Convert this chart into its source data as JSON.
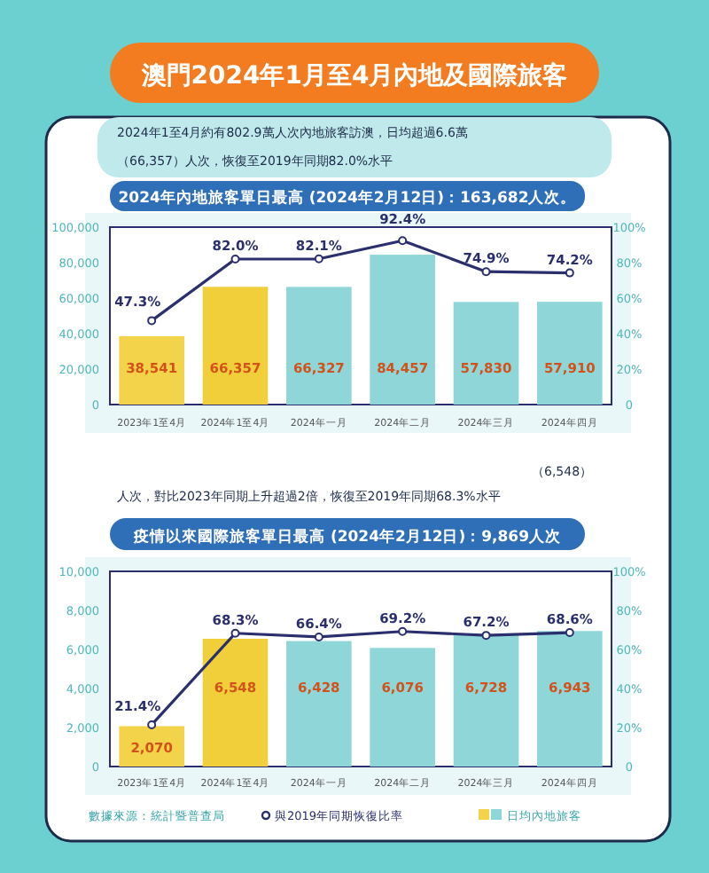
{
  "chart_data": [
    {
      "type": "bar",
      "title": "澳門2024年1月至4月內地及國際旅客",
      "subtitle": "2024年內地旅客單日最高 (2024年2月12日)：163,682人次。",
      "annotations": [
        "2024年1至4月約有802.9萬人次內地旅客訪澳，日均超過6.6萬",
        "（66,357）人次，恢復至2019年同期82.0%水平"
      ],
      "categories": [
        "2023年1至4月",
        "2024年1至4月",
        "2024年一月",
        "2024年二月",
        "2024年三月",
        "2024年四月"
      ],
      "series": [
        {
          "axis": "y",
          "colors": [
            "#f3d34a",
            "#f0cf3a",
            "#8fd6d8",
            "#8fd6d8",
            "#8fd6d8",
            "#8fd6d8"
          ],
          "values": [
            38541,
            66357,
            66327,
            84457,
            57830,
            57910
          ],
          "value_labels": [
            "38,541",
            "66,357",
            "66,327",
            "84,457",
            "57,830",
            "57,910"
          ]
        },
        {
          "type": "line",
          "axis": "y2",
          "color": "#2b2f6e",
          "values": [
            47.3,
            82.0,
            82.1,
            92.4,
            74.9,
            74.2
          ],
          "value_labels": [
            "47.3%",
            "82.0%",
            "82.1%",
            "92.4%",
            "74.9%",
            "74.2%"
          ]
        }
      ],
      "ylim": [
        0,
        100000
      ],
      "yticks": [
        {
          "value": 0,
          "label": "0"
        },
        {
          "value": 20000,
          "label": "20,000"
        },
        {
          "value": 40000,
          "label": "40,000"
        },
        {
          "value": 60000,
          "label": "60,000"
        },
        {
          "value": 80000,
          "label": "80,000"
        },
        {
          "value": 100000,
          "label": "100,000"
        }
      ],
      "y2lim": [
        0,
        100
      ],
      "y2ticks": [
        0,
        {
          "value": 20,
          "label": "20%"
        },
        {
          "value": 40,
          "label": "40%"
        },
        {
          "value": 60,
          "label": "60%"
        },
        {
          "value": 80,
          "label": "80%"
        },
        {
          "value": 100,
          "label": "100%"
        }
      ],
      "marker": "circle",
      "legend": false
    },
    {
      "type": "bar",
      "title": "疫情以來國際旅客單日最高 (2024年2月12日)：9,869人次",
      "annotations": [
        "（6,548）",
        "人次，對比2023年同期上升超過2倍，恢復至2019年同期68.3%水平",
        "數據來源：統計暨普查局"
      ],
      "categories": [
        "2023年1至4月",
        "2024年1至4月",
        "2024年一月",
        "2024年二月",
        "2024年三月",
        "2024年四月"
      ],
      "series": [
        {
          "axis": "y",
          "name": "日均內地旅客",
          "color": "#8fd6d8",
          "colors": [
            "#f3d34a",
            "#f0cf3a",
            "#8fd6d8",
            "#8fd6d8",
            "#8fd6d8",
            "#8fd6d8"
          ],
          "values": [
            2070,
            6548,
            6428,
            6076,
            6728,
            6943
          ],
          "value_labels": [
            "2,070",
            "6,548",
            "6,428",
            "6,076",
            "6,728",
            "6,943"
          ]
        },
        {
          "type": "line",
          "axis": "y2",
          "name": "與2019年同期恢復比率",
          "color": "#2b2f6e",
          "values": [
            21.4,
            68.3,
            66.4,
            69.2,
            67.2,
            68.6
          ],
          "value_labels": [
            "21.4%",
            "68.3%",
            "66.4%",
            "69.2%",
            "67.2%",
            "68.6%"
          ]
        }
      ],
      "ylim": [
        0,
        10000
      ],
      "yticks": [
        {
          "value": 0,
          "label": "0"
        },
        {
          "value": 2000,
          "label": "2,000"
        },
        {
          "value": 4000,
          "label": "4,000"
        },
        {
          "value": 6000,
          "label": "6,000"
        },
        {
          "value": 8000,
          "label": "8,000"
        },
        {
          "value": 10000,
          "label": "10,000"
        }
      ],
      "y2lim": [
        0,
        100
      ],
      "y2ticks": [
        0,
        {
          "value": 20,
          "label": "20%"
        },
        {
          "value": 40,
          "label": "40%"
        },
        {
          "value": 60,
          "label": "60%"
        },
        {
          "value": 80,
          "label": "80%"
        },
        {
          "value": 100,
          "label": "100%"
        }
      ],
      "marker": "circle",
      "legend": "bottom"
    }
  ]
}
